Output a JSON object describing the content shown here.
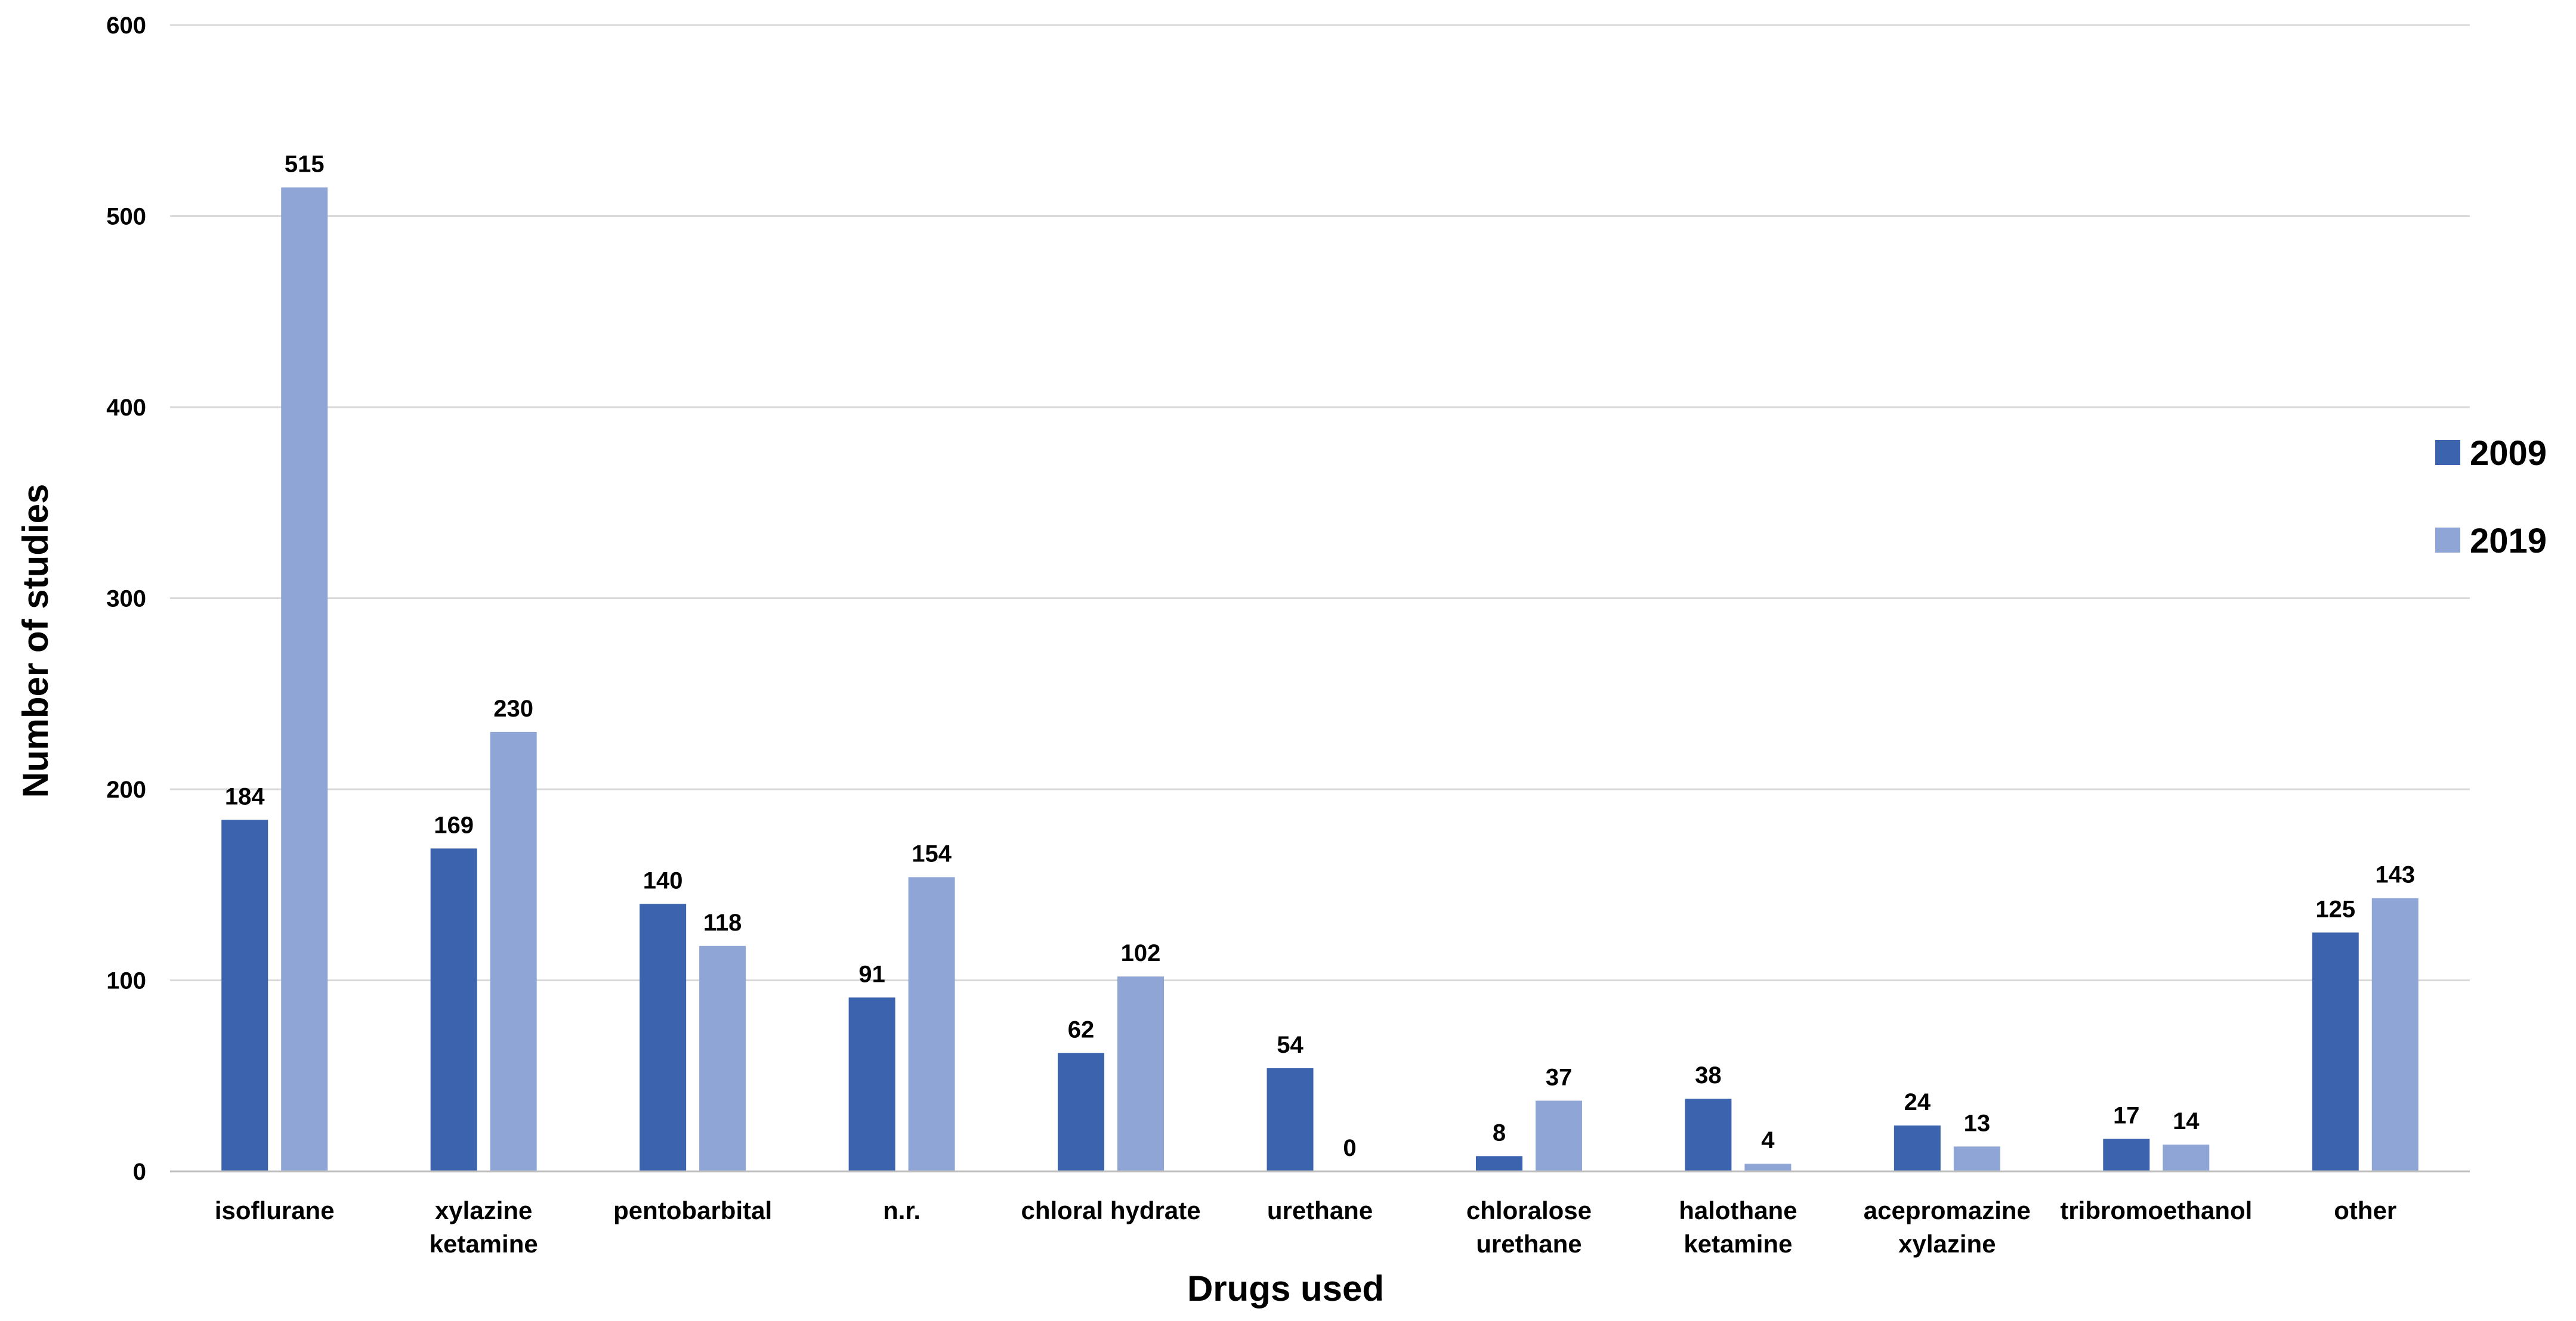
{
  "chart_data": {
    "type": "bar",
    "title": "",
    "xlabel": "Drugs used",
    "ylabel": "Number of studies",
    "ylim": [
      0,
      600
    ],
    "yticks": [
      0,
      100,
      200,
      300,
      400,
      500,
      600
    ],
    "grid": true,
    "legend_position": "right",
    "categories": [
      [
        "isoflurane"
      ],
      [
        "xylazine",
        "ketamine"
      ],
      [
        "pentobarbital"
      ],
      [
        "n.r."
      ],
      [
        "chloral hydrate"
      ],
      [
        "urethane"
      ],
      [
        "chloralose",
        "urethane"
      ],
      [
        "halothane",
        "ketamine"
      ],
      [
        "acepromazine",
        "xylazine"
      ],
      [
        "tribromoethanol"
      ],
      [
        "other"
      ]
    ],
    "series": [
      {
        "name": "2009",
        "color": "#3C64AE",
        "values": [
          184,
          169,
          140,
          91,
          62,
          54,
          8,
          38,
          24,
          17,
          125
        ]
      },
      {
        "name": "2019",
        "color": "#8FA5D6",
        "values": [
          515,
          230,
          118,
          154,
          102,
          0,
          37,
          4,
          13,
          14,
          143
        ]
      }
    ]
  },
  "colors": {
    "grid": "#D9D9D9",
    "axis": "#BFBFBF"
  }
}
